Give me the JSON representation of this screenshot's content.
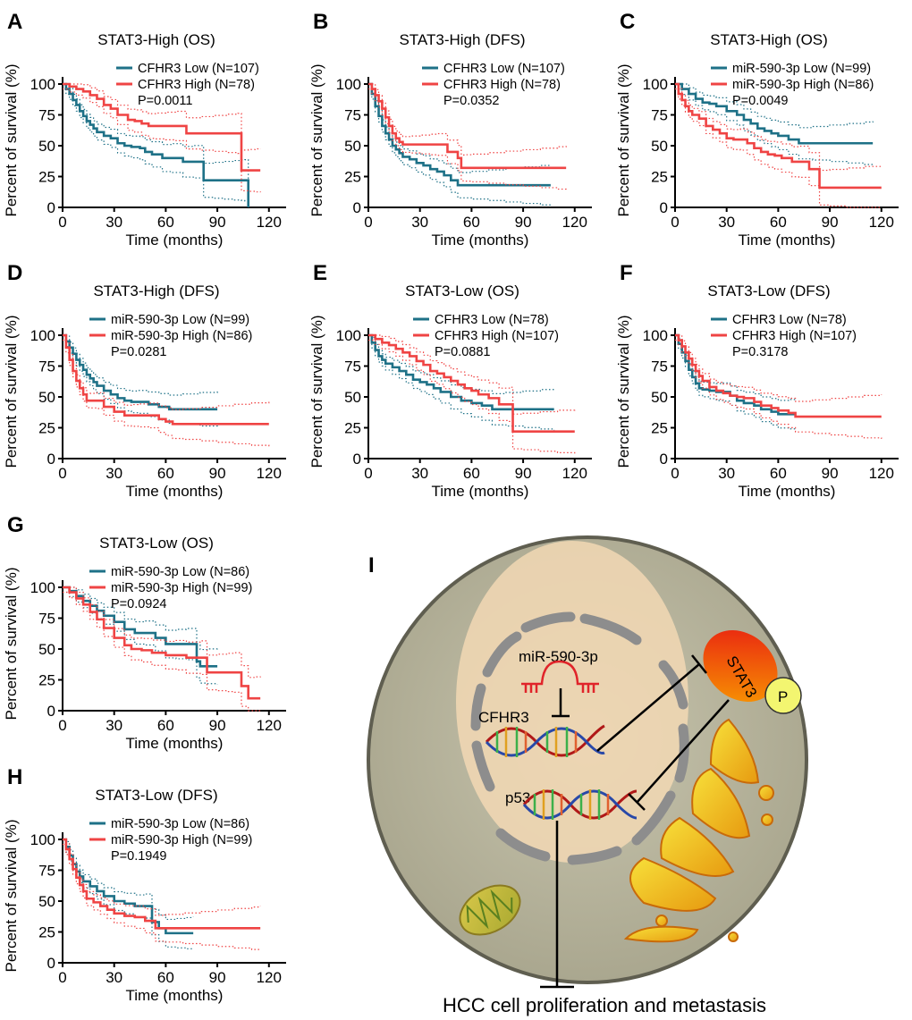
{
  "colors": {
    "low": "#1e7187",
    "high": "#ef4444",
    "strand_a": "#b01818",
    "strand_b": "#2848a8",
    "inhib": "#e0242a"
  },
  "chart_data": [
    {
      "panel": "A",
      "type": "line",
      "title": "STAT3-High (OS)",
      "xlabel": "Time (months)",
      "ylabel": "Percent of survival (%)",
      "xlim": [
        0,
        130
      ],
      "xticks": [
        0,
        30,
        60,
        90,
        120
      ],
      "ylim": [
        0,
        100
      ],
      "yticks": [
        0,
        25,
        50,
        75,
        100
      ],
      "pvalue": "P=0.0011",
      "series": [
        {
          "name": "CFHR3 Low (N=107)",
          "color": "low",
          "x": [
            0,
            2,
            4,
            6,
            8,
            10,
            12,
            14,
            16,
            18,
            20,
            24,
            28,
            32,
            36,
            40,
            45,
            48,
            52,
            58,
            64,
            70,
            76,
            82,
            88,
            94,
            100,
            104,
            106,
            108
          ],
          "y": [
            100,
            96,
            92,
            87,
            83,
            78,
            74,
            70,
            67,
            64,
            61,
            58,
            56,
            52,
            50,
            49,
            48,
            45,
            43,
            40,
            40,
            37,
            37,
            22,
            22,
            22,
            22,
            22,
            22,
            0
          ]
        },
        {
          "name": "CFHR3 High (N=78)",
          "color": "high",
          "x": [
            0,
            4,
            8,
            12,
            16,
            20,
            24,
            28,
            32,
            38,
            42,
            46,
            50,
            54,
            60,
            66,
            72,
            80,
            88,
            96,
            102,
            104,
            108,
            112,
            115
          ],
          "y": [
            100,
            98,
            96,
            94,
            91,
            88,
            83,
            80,
            75,
            71,
            70,
            68,
            66,
            66,
            66,
            66,
            60,
            60,
            60,
            60,
            60,
            30,
            30,
            30,
            30
          ]
        }
      ]
    },
    {
      "panel": "B",
      "type": "line",
      "title": "STAT3-High (DFS)",
      "xlabel": "Time (months)",
      "ylabel": "Percent of survival (%)",
      "xlim": [
        0,
        130
      ],
      "xticks": [
        0,
        30,
        60,
        90,
        120
      ],
      "ylim": [
        0,
        100
      ],
      "yticks": [
        0,
        25,
        50,
        75,
        100
      ],
      "pvalue": "P=0.0352",
      "series": [
        {
          "name": "CFHR3 Low (N=107)",
          "color": "low",
          "x": [
            0,
            2,
            4,
            6,
            8,
            10,
            12,
            14,
            16,
            18,
            20,
            24,
            28,
            32,
            36,
            40,
            44,
            48,
            52,
            60,
            70,
            80,
            90,
            100,
            106
          ],
          "y": [
            100,
            92,
            82,
            74,
            66,
            60,
            55,
            50,
            47,
            44,
            41,
            39,
            36,
            34,
            31,
            29,
            26,
            22,
            18,
            18,
            18,
            18,
            18,
            18,
            18
          ]
        },
        {
          "name": "CFHR3 High (N=78)",
          "color": "high",
          "x": [
            0,
            2,
            4,
            6,
            8,
            10,
            12,
            14,
            16,
            18,
            20,
            24,
            30,
            36,
            40,
            46,
            52,
            54,
            56,
            60,
            70,
            80,
            90,
            100,
            110,
            115
          ],
          "y": [
            100,
            96,
            91,
            86,
            80,
            73,
            66,
            60,
            56,
            53,
            51,
            51,
            51,
            51,
            51,
            45,
            40,
            32,
            32,
            32,
            32,
            32,
            32,
            32,
            32,
            32
          ]
        }
      ]
    },
    {
      "panel": "C",
      "type": "line",
      "title": "STAT3-High (OS)",
      "xlabel": "Time (months)",
      "ylabel": "Percent of survival (%)",
      "xlim": [
        0,
        130
      ],
      "xticks": [
        0,
        30,
        60,
        90,
        120
      ],
      "ylim": [
        0,
        100
      ],
      "yticks": [
        0,
        25,
        50,
        75,
        100
      ],
      "pvalue": "P=0.0049",
      "series": [
        {
          "name": "miR-590-3p Low  (N=99)",
          "color": "low",
          "x": [
            0,
            4,
            8,
            12,
            16,
            20,
            24,
            30,
            36,
            40,
            44,
            48,
            52,
            56,
            60,
            66,
            72,
            80,
            90,
            100,
            110,
            115
          ],
          "y": [
            100,
            96,
            92,
            88,
            85,
            84,
            82,
            78,
            75,
            71,
            68,
            64,
            62,
            60,
            58,
            55,
            52,
            52,
            52,
            52,
            52,
            52
          ]
        },
        {
          "name": "miR-590-3p High (N=86)",
          "color": "high",
          "x": [
            0,
            2,
            4,
            6,
            8,
            10,
            14,
            18,
            22,
            26,
            30,
            34,
            38,
            42,
            46,
            50,
            54,
            58,
            62,
            68,
            72,
            78,
            84,
            90,
            100,
            110,
            120
          ],
          "y": [
            100,
            92,
            87,
            82,
            78,
            75,
            72,
            66,
            63,
            60,
            56,
            55,
            55,
            52,
            48,
            45,
            43,
            42,
            40,
            37,
            37,
            31,
            16,
            16,
            16,
            16,
            16
          ]
        }
      ]
    },
    {
      "panel": "D",
      "type": "line",
      "title": "STAT3-High (DFS)",
      "xlabel": "Time (months)",
      "ylabel": "Percent of survival (%)",
      "xlim": [
        0,
        130
      ],
      "xticks": [
        0,
        30,
        60,
        90,
        120
      ],
      "ylim": [
        0,
        100
      ],
      "yticks": [
        0,
        25,
        50,
        75,
        100
      ],
      "pvalue": "P=0.0281",
      "series": [
        {
          "name": "miR-590-3p Low  (N=99)",
          "color": "low",
          "x": [
            0,
            2,
            4,
            6,
            8,
            10,
            12,
            14,
            16,
            18,
            20,
            24,
            28,
            32,
            36,
            40,
            44,
            50,
            56,
            62,
            70,
            80,
            90
          ],
          "y": [
            100,
            95,
            90,
            85,
            80,
            76,
            72,
            68,
            65,
            62,
            59,
            55,
            52,
            49,
            47,
            46,
            46,
            44,
            42,
            40,
            40,
            40,
            40
          ]
        },
        {
          "name": "miR-590-3p High (N=86)",
          "color": "high",
          "x": [
            0,
            2,
            4,
            6,
            8,
            10,
            12,
            14,
            16,
            20,
            24,
            30,
            36,
            40,
            44,
            50,
            56,
            60,
            64,
            70,
            80,
            90,
            100,
            110,
            120
          ],
          "y": [
            100,
            90,
            80,
            71,
            63,
            57,
            52,
            47,
            47,
            47,
            42,
            38,
            35,
            35,
            35,
            35,
            32,
            30,
            28,
            28,
            28,
            28,
            28,
            28,
            28
          ]
        }
      ]
    },
    {
      "panel": "E",
      "type": "line",
      "title": "STAT3-Low (OS)",
      "xlabel": "Time (months)",
      "ylabel": "Percent of survival (%)",
      "xlim": [
        0,
        130
      ],
      "xticks": [
        0,
        30,
        60,
        90,
        120
      ],
      "ylim": [
        0,
        100
      ],
      "yticks": [
        0,
        25,
        50,
        75,
        100
      ],
      "pvalue": "P=0.0881",
      "series": [
        {
          "name": "CFHR3 Low  (N=78)",
          "color": "low",
          "x": [
            0,
            2,
            4,
            6,
            8,
            10,
            14,
            18,
            22,
            26,
            30,
            34,
            38,
            42,
            48,
            54,
            60,
            66,
            72,
            80,
            90,
            100,
            108
          ],
          "y": [
            100,
            94,
            88,
            83,
            80,
            77,
            74,
            71,
            68,
            64,
            62,
            60,
            57,
            54,
            50,
            47,
            45,
            43,
            40,
            40,
            40,
            40,
            40
          ]
        },
        {
          "name": "CFHR3 High (N=107)",
          "color": "high",
          "x": [
            0,
            4,
            8,
            12,
            16,
            20,
            24,
            28,
            32,
            36,
            40,
            44,
            48,
            52,
            56,
            60,
            64,
            70,
            76,
            82,
            84,
            90,
            100,
            110,
            120
          ],
          "y": [
            100,
            97,
            94,
            92,
            89,
            86,
            83,
            79,
            76,
            71,
            69,
            66,
            63,
            60,
            57,
            55,
            52,
            49,
            44,
            44,
            22,
            22,
            22,
            22,
            22
          ]
        }
      ]
    },
    {
      "panel": "F",
      "type": "line",
      "title": "STAT3-Low (DFS)",
      "xlabel": "Time (months)",
      "ylabel": "Percent of survival (%)",
      "xlim": [
        0,
        130
      ],
      "xticks": [
        0,
        30,
        60,
        90,
        120
      ],
      "ylim": [
        0,
        100
      ],
      "yticks": [
        0,
        25,
        50,
        75,
        100
      ],
      "pvalue": "P=0.3178",
      "series": [
        {
          "name": "CFHR3 Low   (N=78)",
          "color": "low",
          "x": [
            0,
            2,
            4,
            6,
            8,
            10,
            12,
            14,
            16,
            20,
            24,
            28,
            32,
            36,
            40,
            46,
            50,
            56,
            60,
            66,
            70
          ],
          "y": [
            100,
            93,
            86,
            79,
            72,
            66,
            61,
            57,
            56,
            55,
            54,
            54,
            51,
            47,
            45,
            43,
            40,
            38,
            36,
            36,
            36
          ]
        },
        {
          "name": "CFHR3 High (N=107)",
          "color": "high",
          "x": [
            0,
            2,
            4,
            6,
            8,
            10,
            12,
            14,
            16,
            20,
            24,
            28,
            32,
            36,
            40,
            46,
            50,
            56,
            60,
            66,
            70,
            80,
            90,
            100,
            110,
            120
          ],
          "y": [
            100,
            96,
            91,
            86,
            81,
            76,
            71,
            67,
            63,
            58,
            55,
            53,
            51,
            50,
            49,
            46,
            43,
            41,
            39,
            37,
            34,
            34,
            34,
            34,
            34,
            34
          ]
        }
      ]
    },
    {
      "panel": "G",
      "type": "line",
      "title": "STAT3-Low (OS)",
      "xlabel": "Time (months)",
      "ylabel": "Percent of survival (%)",
      "xlim": [
        0,
        130
      ],
      "xticks": [
        0,
        30,
        60,
        90,
        120
      ],
      "ylim": [
        0,
        100
      ],
      "yticks": [
        0,
        25,
        50,
        75,
        100
      ],
      "pvalue": "P=0.0924",
      "series": [
        {
          "name": "miR-590-3p Low (N=86)",
          "color": "low",
          "x": [
            0,
            4,
            8,
            12,
            16,
            20,
            24,
            30,
            36,
            42,
            48,
            54,
            60,
            66,
            72,
            78,
            80,
            84,
            90
          ],
          "y": [
            100,
            97,
            93,
            89,
            85,
            81,
            77,
            72,
            66,
            63,
            63,
            59,
            54,
            54,
            54,
            40,
            36,
            36,
            36
          ]
        },
        {
          "name": "miR-590-3p High (N=99)",
          "color": "high",
          "x": [
            0,
            4,
            8,
            12,
            16,
            20,
            24,
            30,
            36,
            40,
            46,
            52,
            60,
            66,
            72,
            80,
            84,
            90,
            96,
            100,
            104,
            108,
            112,
            115
          ],
          "y": [
            100,
            96,
            91,
            86,
            80,
            74,
            67,
            59,
            53,
            50,
            49,
            47,
            45,
            45,
            43,
            43,
            31,
            31,
            31,
            31,
            20,
            10,
            10,
            10
          ]
        }
      ]
    },
    {
      "panel": "H",
      "type": "line",
      "title": "STAT3-Low (DFS)",
      "xlabel": "Time (months)",
      "ylabel": "Percent of survival (%)",
      "xlim": [
        0,
        130
      ],
      "xticks": [
        0,
        30,
        60,
        90,
        120
      ],
      "ylim": [
        0,
        100
      ],
      "yticks": [
        0,
        25,
        50,
        75,
        100
      ],
      "pvalue": "P=0.1949",
      "series": [
        {
          "name": "miR-590-3p Low (N=86)",
          "color": "low",
          "x": [
            0,
            2,
            4,
            6,
            8,
            10,
            12,
            16,
            20,
            24,
            30,
            36,
            42,
            48,
            52,
            56,
            60,
            66,
            72,
            76
          ],
          "y": [
            100,
            94,
            87,
            80,
            74,
            70,
            66,
            62,
            58,
            54,
            50,
            48,
            46,
            46,
            33,
            28,
            24,
            24,
            24,
            24
          ]
        },
        {
          "name": "miR-590-3p High (N=99)",
          "color": "high",
          "x": [
            0,
            2,
            4,
            6,
            8,
            10,
            12,
            14,
            18,
            22,
            26,
            30,
            36,
            42,
            48,
            54,
            60,
            70,
            80,
            90,
            100,
            110,
            115
          ],
          "y": [
            100,
            92,
            84,
            76,
            69,
            63,
            58,
            52,
            49,
            46,
            43,
            40,
            38,
            37,
            34,
            28,
            28,
            28,
            28,
            28,
            28,
            28,
            28
          ]
        }
      ]
    }
  ],
  "diagram": {
    "panel": "I",
    "labels": {
      "mirna": "miR-590-3p",
      "gene1": "CFHR3",
      "gene2": "p53",
      "kinase": "STAT3",
      "phospho": "P",
      "outcome": "HCC cell proliferation and metastasis"
    }
  }
}
